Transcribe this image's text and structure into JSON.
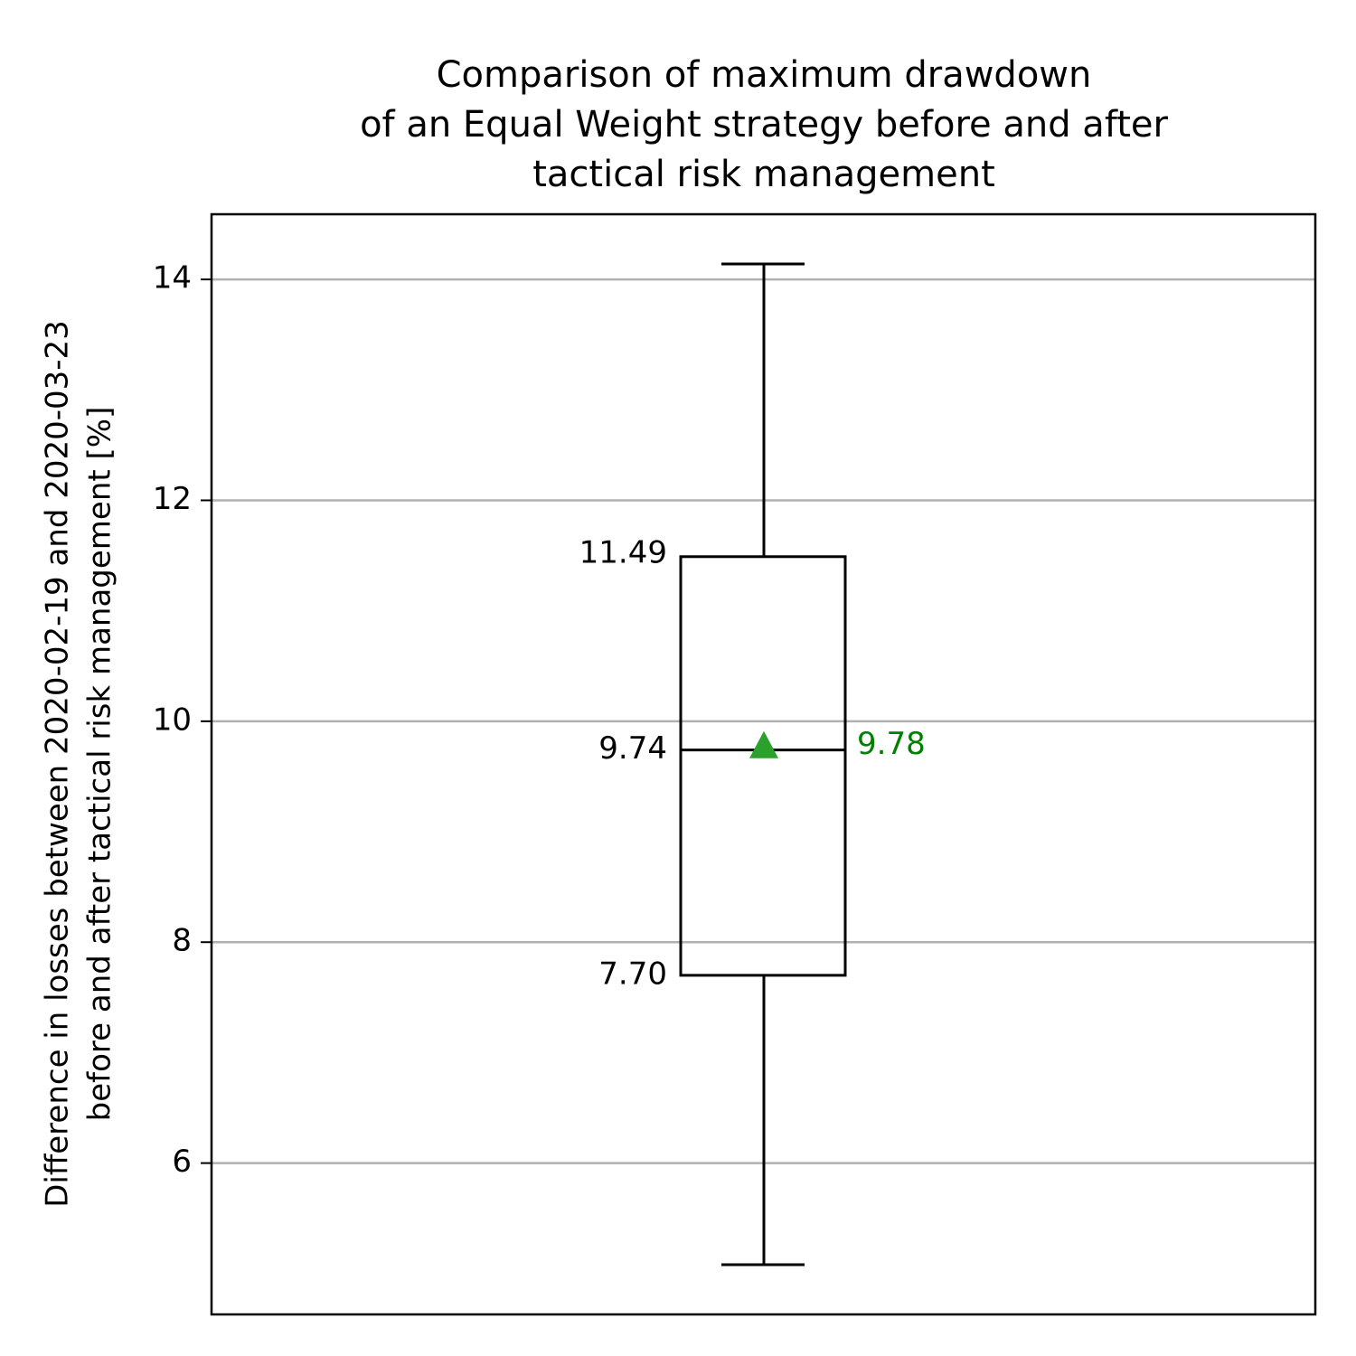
{
  "chart_data": {
    "type": "box",
    "title": "Comparison of maximum drawdown\nof an Equal Weight strategy before and after\ntactical risk management",
    "ylabel": "Difference in losses between 2020-02-19 and 2020-03-23\nbefore and after tactical risk management [%]",
    "box": {
      "whislo": 5.08,
      "q1": 7.7,
      "median": 9.74,
      "q3": 11.49,
      "whishi": 14.14,
      "mean": 9.78
    },
    "value_labels": {
      "q1": "7.70"
    },
    "color": "#000000",
    "mean_color": "#2ca02c",
    "mean_label_color": "#008000",
    "ylim": [
      4.63,
      14.59
    ],
    "yticks": [
      6,
      8,
      10,
      12,
      14
    ],
    "grid": true
  }
}
